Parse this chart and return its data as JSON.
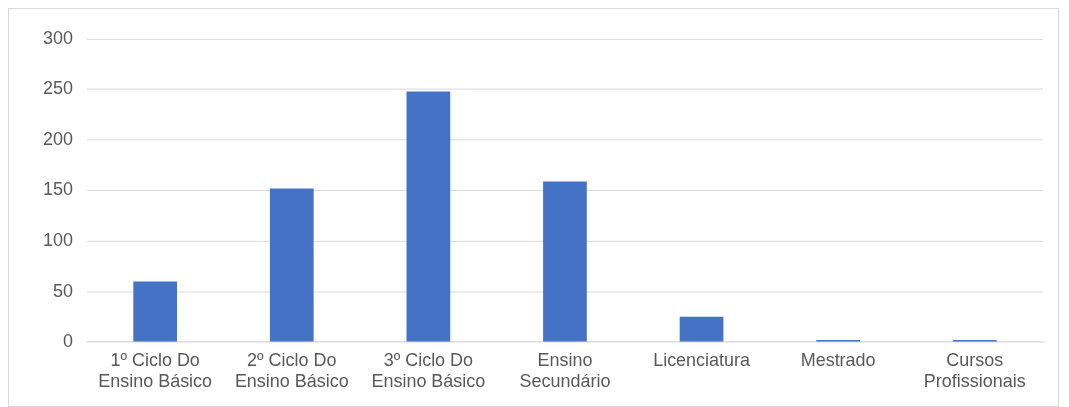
{
  "chart_data": {
    "type": "bar",
    "categories": [
      "1º Ciclo Do Ensino Básico",
      "2º Ciclo Do Ensino Básico",
      "3º Ciclo Do Ensino Básico",
      "Ensino Secundário",
      "Licenciatura",
      "Mestrado",
      "Cursos Profissionais"
    ],
    "values": [
      60,
      152,
      248,
      159,
      25,
      2,
      2
    ],
    "color": "#4472c4",
    "ylim": [
      0,
      300
    ],
    "yticks": [
      0,
      50,
      100,
      150,
      200,
      250,
      300
    ],
    "grid": "y",
    "legend": false
  }
}
